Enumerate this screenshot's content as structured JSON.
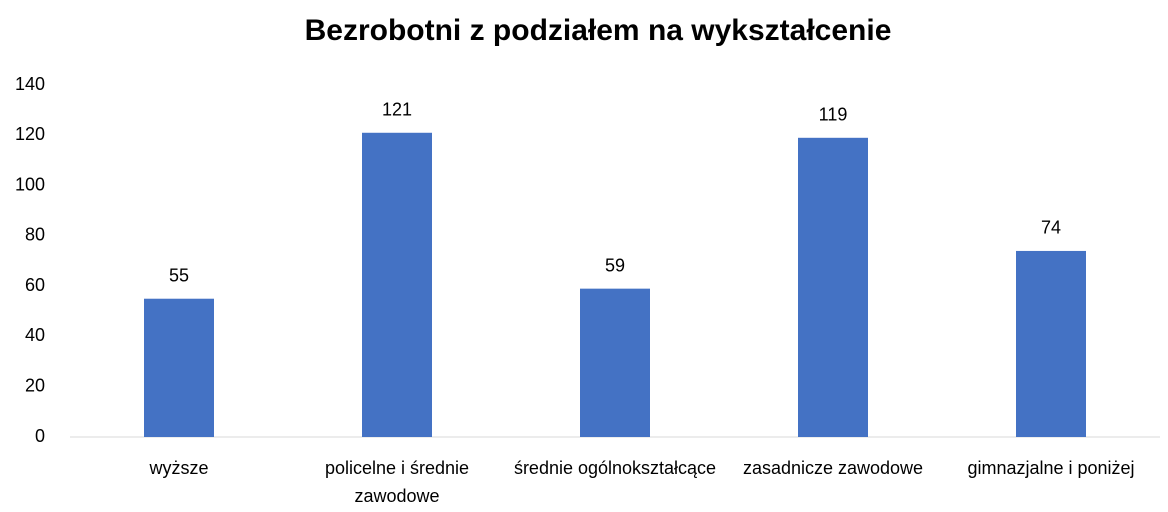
{
  "chart_data": {
    "type": "bar",
    "title": "Bezrobotni z podziałem na wykształcenie",
    "categories": [
      "wyższe",
      "policelne i średnie zawodowe",
      "średnie ogólnokształcące",
      "zasadnicze zawodowe",
      "gimnazjalne i poniżej"
    ],
    "values": [
      55,
      121,
      59,
      119,
      74
    ],
    "color": "#4472c4",
    "ylim": [
      0,
      140
    ],
    "yticks": [
      0,
      20,
      40,
      60,
      80,
      100,
      120,
      140
    ],
    "grid": false
  }
}
